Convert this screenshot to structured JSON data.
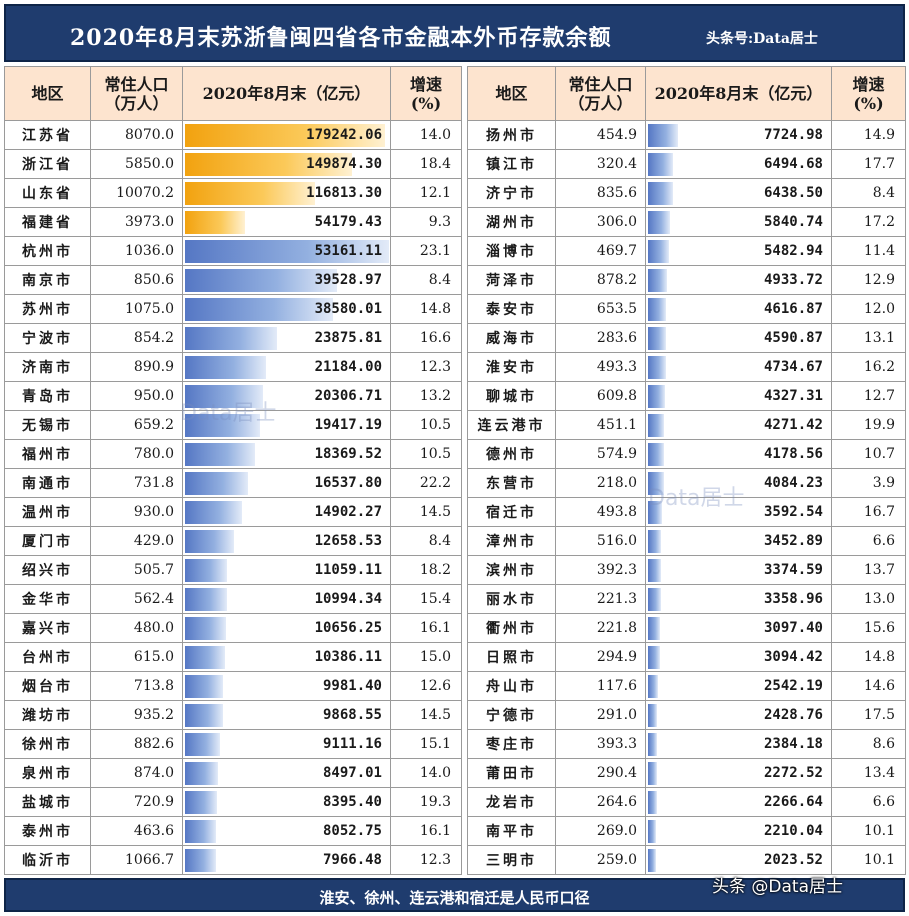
{
  "title": "2020年8月末苏浙鲁闽四省各市金融本外币存款余额",
  "source": "头条号:Data居士",
  "headers": {
    "region": "地区",
    "population": "常住人口\n（万人）",
    "deposit": "2020年8月末（亿元）",
    "growth": "增速\n(%)"
  },
  "chart_data": {
    "type": "table",
    "left_rows": [
      {
        "region": "江苏省",
        "population": "8070.0",
        "deposit": "179242.06",
        "growth": "14.0",
        "color": "gold"
      },
      {
        "region": "浙江省",
        "population": "5850.0",
        "deposit": "149874.30",
        "growth": "18.4",
        "color": "gold"
      },
      {
        "region": "山东省",
        "population": "10070.2",
        "deposit": "116813.30",
        "growth": "12.1",
        "color": "gold"
      },
      {
        "region": "福建省",
        "population": "3973.0",
        "deposit": "54179.43",
        "growth": "9.3",
        "color": "gold"
      },
      {
        "region": "杭州市",
        "population": "1036.0",
        "deposit": "53161.11",
        "growth": "23.1",
        "color": "blue"
      },
      {
        "region": "南京市",
        "population": "850.6",
        "deposit": "39528.97",
        "growth": "8.4",
        "color": "blue"
      },
      {
        "region": "苏州市",
        "population": "1075.0",
        "deposit": "38580.01",
        "growth": "14.8",
        "color": "blue"
      },
      {
        "region": "宁波市",
        "population": "854.2",
        "deposit": "23875.81",
        "growth": "16.6",
        "color": "blue"
      },
      {
        "region": "济南市",
        "population": "890.9",
        "deposit": "21184.00",
        "growth": "12.3",
        "color": "blue"
      },
      {
        "region": "青岛市",
        "population": "950.0",
        "deposit": "20306.71",
        "growth": "13.2",
        "color": "blue"
      },
      {
        "region": "无锡市",
        "population": "659.2",
        "deposit": "19417.19",
        "growth": "10.5",
        "color": "blue"
      },
      {
        "region": "福州市",
        "population": "780.0",
        "deposit": "18369.52",
        "growth": "10.5",
        "color": "blue"
      },
      {
        "region": "南通市",
        "population": "731.8",
        "deposit": "16537.80",
        "growth": "22.2",
        "color": "blue"
      },
      {
        "region": "温州市",
        "population": "930.0",
        "deposit": "14902.27",
        "growth": "14.5",
        "color": "blue"
      },
      {
        "region": "厦门市",
        "population": "429.0",
        "deposit": "12658.53",
        "growth": "8.4",
        "color": "blue"
      },
      {
        "region": "绍兴市",
        "population": "505.7",
        "deposit": "11059.11",
        "growth": "18.2",
        "color": "blue"
      },
      {
        "region": "金华市",
        "population": "562.4",
        "deposit": "10994.34",
        "growth": "15.4",
        "color": "blue"
      },
      {
        "region": "嘉兴市",
        "population": "480.0",
        "deposit": "10656.25",
        "growth": "16.1",
        "color": "blue"
      },
      {
        "region": "台州市",
        "population": "615.0",
        "deposit": "10386.11",
        "growth": "15.0",
        "color": "blue"
      },
      {
        "region": "烟台市",
        "population": "713.8",
        "deposit": "9981.40",
        "growth": "12.6",
        "color": "blue"
      },
      {
        "region": "潍坊市",
        "population": "935.2",
        "deposit": "9868.55",
        "growth": "14.5",
        "color": "blue"
      },
      {
        "region": "徐州市",
        "population": "882.6",
        "deposit": "9111.16",
        "growth": "15.1",
        "color": "blue"
      },
      {
        "region": "泉州市",
        "population": "874.0",
        "deposit": "8497.01",
        "growth": "14.0",
        "color": "blue"
      },
      {
        "region": "盐城市",
        "population": "720.9",
        "deposit": "8395.40",
        "growth": "19.3",
        "color": "blue"
      },
      {
        "region": "泰州市",
        "population": "463.6",
        "deposit": "8052.75",
        "growth": "16.1",
        "color": "blue"
      },
      {
        "region": "临沂市",
        "population": "1066.7",
        "deposit": "7966.48",
        "growth": "12.3",
        "color": "blue"
      }
    ],
    "right_rows": [
      {
        "region": "扬州市",
        "population": "454.9",
        "deposit": "7724.98",
        "growth": "14.9",
        "color": "blue"
      },
      {
        "region": "镇江市",
        "population": "320.4",
        "deposit": "6494.68",
        "growth": "17.7",
        "color": "blue"
      },
      {
        "region": "济宁市",
        "population": "835.6",
        "deposit": "6438.50",
        "growth": "8.4",
        "color": "blue"
      },
      {
        "region": "湖州市",
        "population": "306.0",
        "deposit": "5840.74",
        "growth": "17.2",
        "color": "blue"
      },
      {
        "region": "淄博市",
        "population": "469.7",
        "deposit": "5482.94",
        "growth": "11.4",
        "color": "blue"
      },
      {
        "region": "菏泽市",
        "population": "878.2",
        "deposit": "4933.72",
        "growth": "12.9",
        "color": "blue"
      },
      {
        "region": "泰安市",
        "population": "653.5",
        "deposit": "4616.87",
        "growth": "12.0",
        "color": "blue"
      },
      {
        "region": "威海市",
        "population": "283.6",
        "deposit": "4590.87",
        "growth": "13.1",
        "color": "blue"
      },
      {
        "region": "淮安市",
        "population": "493.3",
        "deposit": "4734.67",
        "growth": "16.2",
        "color": "blue"
      },
      {
        "region": "聊城市",
        "population": "609.8",
        "deposit": "4327.31",
        "growth": "12.7",
        "color": "blue"
      },
      {
        "region": "连云港市",
        "population": "451.1",
        "deposit": "4271.42",
        "growth": "19.9",
        "color": "blue"
      },
      {
        "region": "德州市",
        "population": "574.9",
        "deposit": "4178.56",
        "growth": "10.7",
        "color": "blue"
      },
      {
        "region": "东营市",
        "population": "218.0",
        "deposit": "4084.23",
        "growth": "3.9",
        "color": "blue"
      },
      {
        "region": "宿迁市",
        "population": "493.8",
        "deposit": "3592.54",
        "growth": "16.7",
        "color": "blue"
      },
      {
        "region": "漳州市",
        "population": "516.0",
        "deposit": "3452.89",
        "growth": "6.6",
        "color": "blue"
      },
      {
        "region": "滨州市",
        "population": "392.3",
        "deposit": "3374.59",
        "growth": "13.7",
        "color": "blue"
      },
      {
        "region": "丽水市",
        "population": "221.3",
        "deposit": "3358.96",
        "growth": "13.0",
        "color": "blue"
      },
      {
        "region": "衢州市",
        "population": "221.8",
        "deposit": "3097.40",
        "growth": "15.6",
        "color": "blue"
      },
      {
        "region": "日照市",
        "population": "294.9",
        "deposit": "3094.42",
        "growth": "14.8",
        "color": "blue"
      },
      {
        "region": "舟山市",
        "population": "117.6",
        "deposit": "2542.19",
        "growth": "14.6",
        "color": "blue"
      },
      {
        "region": "宁德市",
        "population": "291.0",
        "deposit": "2428.76",
        "growth": "17.5",
        "color": "blue"
      },
      {
        "region": "枣庄市",
        "population": "393.3",
        "deposit": "2384.18",
        "growth": "8.6",
        "color": "blue"
      },
      {
        "region": "莆田市",
        "population": "290.4",
        "deposit": "2272.52",
        "growth": "13.4",
        "color": "blue"
      },
      {
        "region": "龙岩市",
        "population": "264.6",
        "deposit": "2266.64",
        "growth": "6.6",
        "color": "blue"
      },
      {
        "region": "南平市",
        "population": "269.0",
        "deposit": "2210.04",
        "growth": "10.1",
        "color": "blue"
      },
      {
        "region": "三明市",
        "population": "259.0",
        "deposit": "2023.52",
        "growth": "10.1",
        "color": "blue"
      }
    ]
  },
  "footnote": "淮安、徐州、连云港和宿迁是人民币口径",
  "watermarks": {
    "mid_left": "Data居士",
    "mid_right": "Data居士",
    "corner": "头条 @Data居士"
  }
}
